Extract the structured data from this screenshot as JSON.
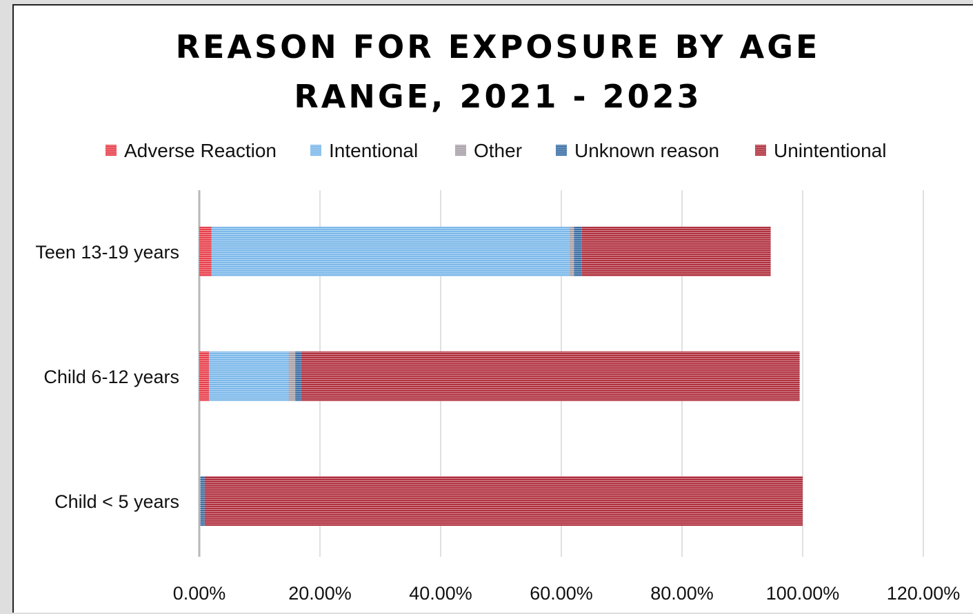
{
  "chart_data": {
    "type": "bar",
    "orientation": "horizontal",
    "stacked": true,
    "title": "REASON FOR EXPOSURE BY AGE RANGE, 2021 - 2023",
    "title_lines": [
      "REASON FOR EXPOSURE BY AGE",
      "RANGE, 2021 - 2023"
    ],
    "categories": [
      "Teen 13-19 years",
      "Child 6-12 years",
      "Child < 5 years"
    ],
    "series": [
      {
        "name": "Adverse Reaction",
        "color": "#e8404c",
        "values": [
          2.0,
          1.6,
          0.0
        ]
      },
      {
        "name": "Intentional",
        "color": "#7bb8ea",
        "values": [
          59.3,
          13.2,
          0.0
        ]
      },
      {
        "name": "Other",
        "color": "#a8a0a8",
        "values": [
          0.8,
          1.1,
          0.2
        ]
      },
      {
        "name": "Unknown reason",
        "color": "#3a6fa5",
        "values": [
          1.3,
          1.0,
          0.7
        ]
      },
      {
        "name": "Unintentional",
        "color": "#b0303e",
        "values": [
          31.3,
          82.6,
          99.1
        ]
      }
    ],
    "xlim": [
      0,
      120
    ],
    "xticks": [
      0,
      20,
      40,
      60,
      80,
      100,
      120
    ],
    "tick_labels": [
      "0.00%",
      "20.00%",
      "40.00%",
      "60.00%",
      "80.00%",
      "100.00%",
      "120.00%"
    ],
    "grid": true,
    "legend_position": "top"
  }
}
